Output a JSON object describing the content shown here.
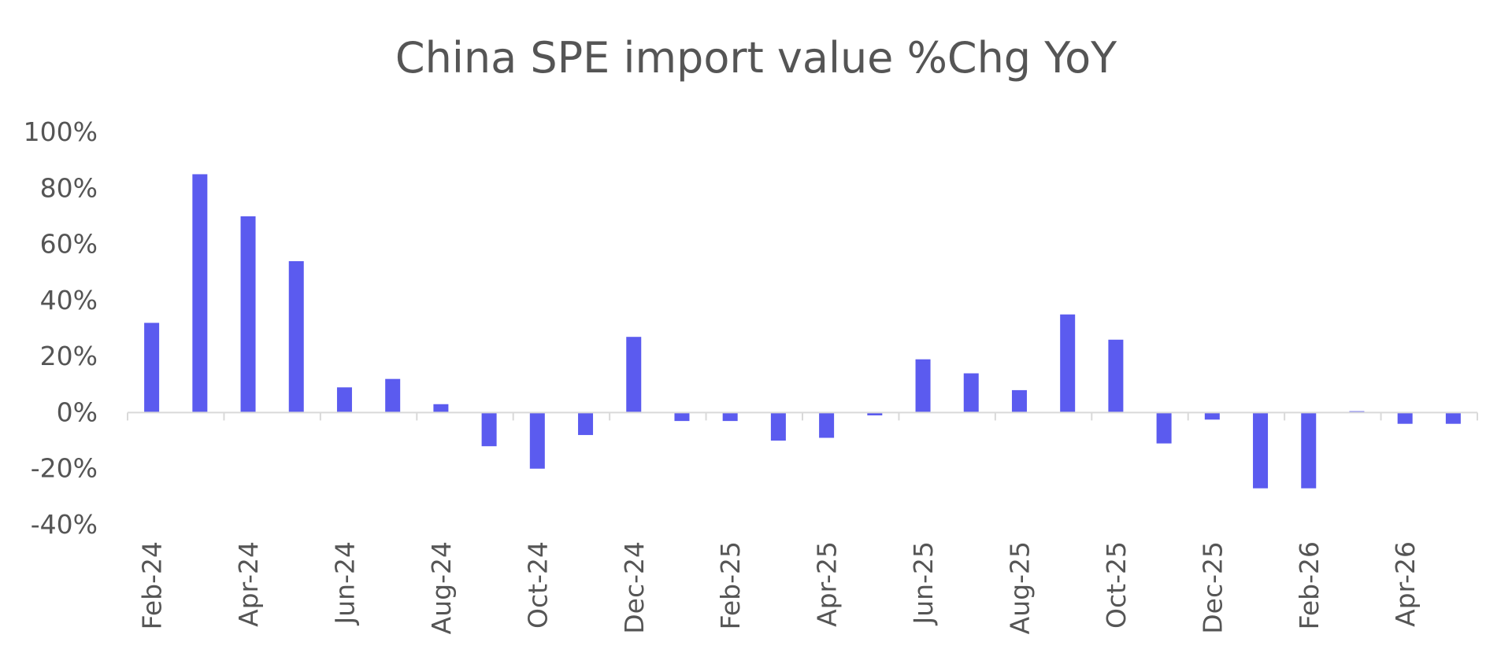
{
  "chart_data": {
    "type": "bar",
    "title": "China SPE import value %Chg YoY",
    "xlabel": "",
    "ylabel": "",
    "ylim": [
      -40,
      100
    ],
    "y_ticks": [
      "100%",
      "80%",
      "60%",
      "40%",
      "20%",
      "0%",
      "-20%",
      "-40%"
    ],
    "y_tick_values": [
      100,
      80,
      60,
      40,
      20,
      0,
      -20,
      -40
    ],
    "x_tick_labels": [
      "Feb-24",
      "Apr-24",
      "Jun-24",
      "Aug-24",
      "Oct-24",
      "Dec-24",
      "Feb-25",
      "Apr-25",
      "Jun-25",
      "Aug-25",
      "Oct-25",
      "Dec-25",
      "Feb-26",
      "Apr-26"
    ],
    "grid": false,
    "bar_color": "#5B5BEF",
    "categories": [
      "Feb-24",
      "Mar-24",
      "Apr-24",
      "May-24",
      "Jun-24",
      "Jul-24",
      "Aug-24",
      "Sep-24",
      "Oct-24",
      "Nov-24",
      "Dec-24",
      "Jan-25",
      "Feb-25",
      "Mar-25",
      "Apr-25",
      "May-25",
      "Jun-25",
      "Jul-25",
      "Aug-25",
      "Sep-25",
      "Oct-25",
      "Nov-25",
      "Dec-25",
      "Jan-26",
      "Feb-26",
      "Mar-26",
      "Apr-26",
      "May-26"
    ],
    "values": [
      32,
      85,
      70,
      54,
      9,
      12,
      3,
      -12,
      -20,
      -8,
      27,
      -3,
      -3,
      -10,
      -9,
      -1,
      19,
      14,
      8,
      35,
      26,
      -11,
      -2.5,
      -27,
      -27,
      0.5,
      -4,
      -4
    ]
  }
}
